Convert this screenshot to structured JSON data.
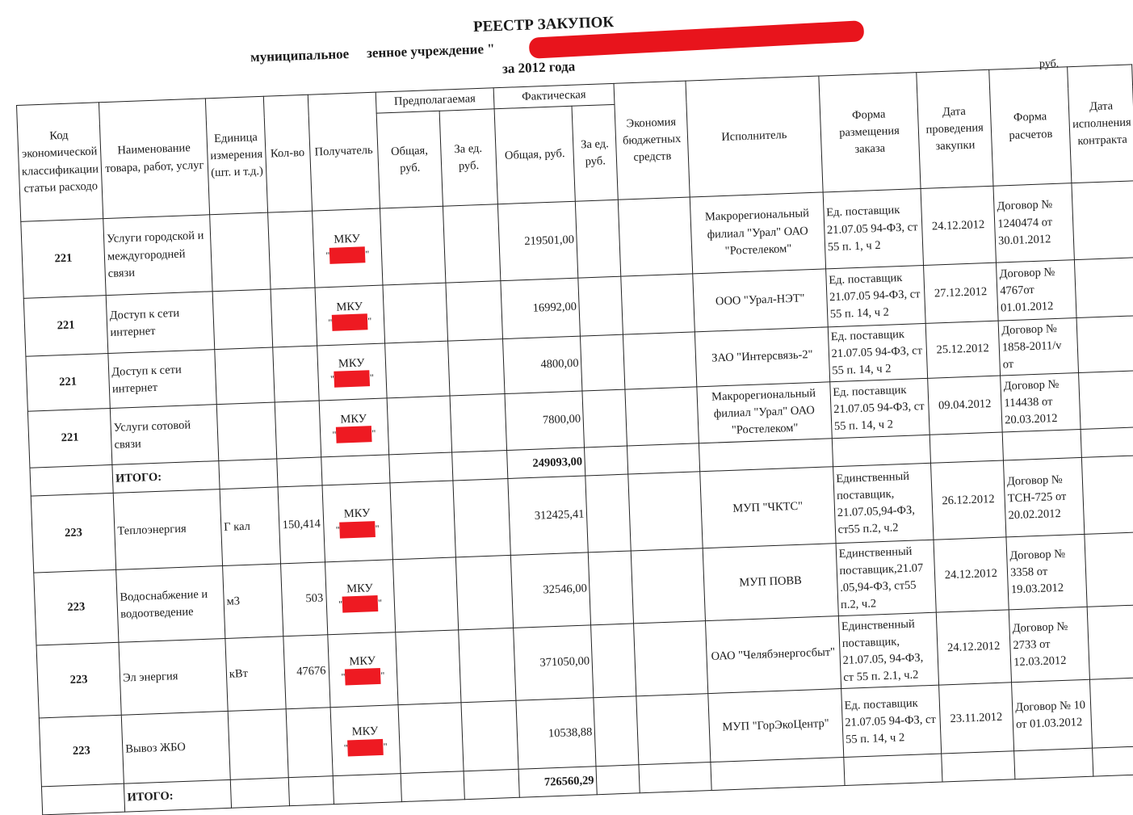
{
  "document": {
    "title": "РЕЕСТР ЗАКУПОК",
    "subtitle_left": "муниципальное",
    "subtitle_right": "зенное учреждение \"",
    "period": "за  2012 года",
    "currency_note": "руб.",
    "redaction_color": "#e8141c"
  },
  "table": {
    "headers": {
      "code": "Код экономической классификации статьи расходо",
      "name": "Наименование товара, работ, услуг",
      "unit": "Единица измерения (шт. и т.д.)",
      "qty": "Кол-во",
      "recipient": "Получатель",
      "planned": "Предполагаемая",
      "actual": "Фактическая",
      "planned_total": "Общая, руб.",
      "planned_unit": "За ед. руб.",
      "actual_total": "Общая, руб.",
      "actual_unit": "За ед. руб.",
      "economy": "Экономия бюджетных средств",
      "executor": "Исполнитель",
      "order_form": "Форма размещения заказа",
      "purchase_date": "Дата проведения закупки",
      "payment_form": "Форма расчетов",
      "execution_date": "Дата исполнения контракта"
    },
    "groups": [
      {
        "rows": [
          {
            "code": "221",
            "name": "Услуги городской и междугородней связи",
            "unit": "",
            "qty": "",
            "recipient": "МКУ",
            "actual_total": "219501,00",
            "executor": "Макрорегиональный филиал \"Урал\" ОАО \"Ростелеком\"",
            "order_form": "Ед. поставщик 21.07.05 94-ФЗ, ст 55 п. 1, ч 2",
            "purchase_date": "24.12.2012",
            "payment_form": "Договор № 1240474 от 30.01.2012"
          },
          {
            "code": "221",
            "name": "Доступ к сети интернет",
            "unit": "",
            "qty": "",
            "recipient": "МКУ",
            "actual_total": "16992,00",
            "executor": "ООО \"Урал-НЭТ\"",
            "order_form": "Ед. поставщик 21.07.05 94-ФЗ, ст 55 п. 14, ч 2",
            "purchase_date": "27.12.2012",
            "payment_form": "Договор № 4767от 01.01.2012"
          },
          {
            "code": "221",
            "name": "Доступ к сети интернет",
            "unit": "",
            "qty": "",
            "recipient": "МКУ",
            "actual_total": "4800,00",
            "executor": "ЗАО \"Интерсвязь-2\"",
            "order_form": "Ед. поставщик 21.07.05 94-ФЗ, ст 55 п. 14, ч 2",
            "purchase_date": "25.12.2012",
            "payment_form": "Договор № 1858-2011/v от"
          },
          {
            "code": "221",
            "name": "Услуги сотовой связи",
            "unit": "",
            "qty": "",
            "recipient": "МКУ",
            "actual_total": "7800,00",
            "executor": "Макрорегиональный филиал \"Урал\" ОАО \"Ростелеком\"",
            "order_form": "Ед. поставщик 21.07.05 94-ФЗ, ст 55 п. 14, ч 2",
            "purchase_date": "09.04.2012",
            "payment_form": "Договор № 114438 от 20.03.2012"
          }
        ],
        "total_label": "ИТОГО:",
        "total_value": "249093,00"
      },
      {
        "rows": [
          {
            "code": "223",
            "name": "Теплоэнергия",
            "unit": "Г кал",
            "qty": "150,414",
            "recipient": "МКУ",
            "actual_total": "312425,41",
            "executor": "МУП \"ЧКТС\"",
            "order_form": "Единственный поставщик, 21.07.05,94-ФЗ, ст55 п.2, ч.2",
            "purchase_date": "26.12.2012",
            "payment_form": "Договор № ТСН-725 от 20.02.2012"
          },
          {
            "code": "223",
            "name": "Водоснабжение и водоотведение",
            "unit": "м3",
            "qty": "503",
            "recipient": "МКУ",
            "actual_total": "32546,00",
            "executor": "МУП ПОВВ",
            "order_form": "Единственный поставщик,21.07 .05,94-ФЗ, ст55 п.2, ч.2",
            "purchase_date": "24.12.2012",
            "payment_form": "Договор № 3358 от 19.03.2012"
          },
          {
            "code": "223",
            "name": "Эл энергия",
            "unit": "кВт",
            "qty": "47676",
            "recipient": "МКУ",
            "actual_total": "371050,00",
            "executor": "ОАО \"Челябэнергосбыт\"",
            "order_form": "Единственный поставщик, 21.07.05, 94-ФЗ, ст 55 п. 2.1, ч.2",
            "purchase_date": "24.12.2012",
            "payment_form": "Договор № 2733 от 12.03.2012"
          },
          {
            "code": "223",
            "name": "Вывоз ЖБО",
            "unit": "",
            "qty": "",
            "recipient": "МКУ",
            "actual_total": "10538,88",
            "executor": "МУП \"ГорЭкоЦентр\"",
            "order_form": "Ед. поставщик 21.07.05 94-ФЗ, ст 55 п. 14, ч 2",
            "purchase_date": "23.11.2012",
            "payment_form": "Договор № 10 от 01.03.2012"
          }
        ],
        "total_label": "ИТОГО:",
        "total_value": "726560,29"
      }
    ]
  }
}
